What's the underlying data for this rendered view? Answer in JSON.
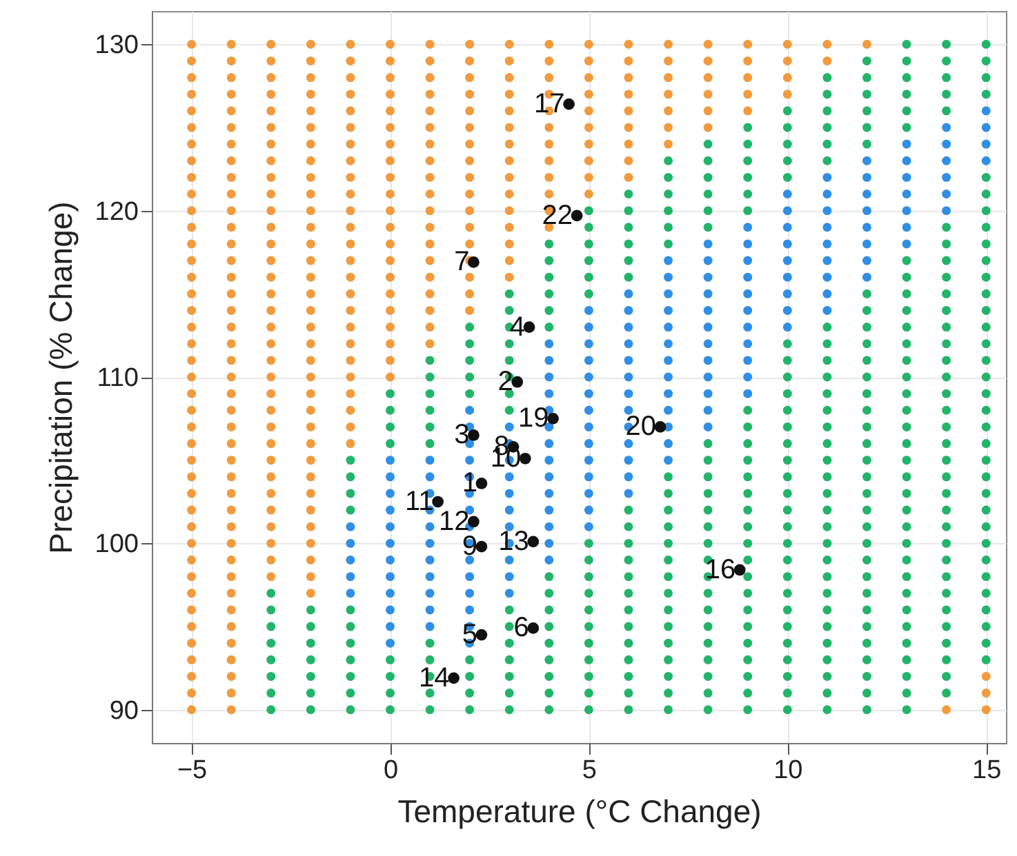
{
  "chart_data": {
    "type": "scatter",
    "xlabel": "Temperature (°C Change)",
    "ylabel": "Precipitation (% Change)",
    "xlim": [
      -6,
      15.5
    ],
    "ylim": [
      88,
      132
    ],
    "xticks": [
      -5,
      0,
      5,
      10,
      15
    ],
    "yticks": [
      90,
      100,
      110,
      120,
      130
    ],
    "grid": true,
    "marker": "circle",
    "series": [
      {
        "color": "#f39a3c",
        "x": [
          -5,
          -5,
          -5,
          -5,
          -5,
          -5,
          -5,
          -5,
          -5,
          -5,
          -5,
          -5,
          -5,
          -5,
          -5,
          -5,
          -5,
          -5,
          -5,
          -5,
          -5,
          -5,
          -5,
          -5,
          -5,
          -5,
          -5,
          -5,
          -5,
          -5,
          -5,
          -5,
          -5,
          -5,
          -5,
          -5,
          -5,
          -5,
          -5,
          -5,
          -5,
          -4,
          -4,
          -4,
          -4,
          -4,
          -4,
          -4,
          -4,
          -4,
          -4,
          -4,
          -4,
          -4,
          -4,
          -4,
          -4,
          -4,
          -4,
          -4,
          -4,
          -4,
          -4,
          -4,
          -4,
          -4,
          -4,
          -4,
          -4,
          -4,
          -4,
          -4,
          -4,
          -4,
          -4,
          -4,
          -4,
          -4,
          -4,
          -4,
          -4,
          -4,
          -3,
          -3,
          -3,
          -3,
          -3,
          -3,
          -3,
          -3,
          -3,
          -3,
          -3,
          -3,
          -3,
          -3,
          -3,
          -3,
          -3,
          -3,
          -3,
          -3,
          -3,
          -3,
          -3,
          -3,
          -3,
          -3,
          -3,
          -3,
          -3,
          -3,
          -3,
          -3,
          -3,
          -2,
          -2,
          -2,
          -2,
          -2,
          -2,
          -2,
          -2,
          -2,
          -2,
          -2,
          -2,
          -2,
          -2,
          -2,
          -2,
          -2,
          -2,
          -2,
          -2,
          -2,
          -2,
          -2,
          -2,
          -2,
          -2,
          -2,
          -2,
          -2,
          -2,
          -2,
          -2,
          -2,
          -2,
          -1,
          -1,
          -1,
          -1,
          -1,
          -1,
          -1,
          -1,
          -1,
          -1,
          -1,
          -1,
          -1,
          -1,
          -1,
          -1,
          -1,
          -1,
          -1,
          -1,
          -1,
          -1,
          -1,
          -1,
          -1,
          0,
          0,
          0,
          0,
          0,
          0,
          0,
          0,
          0,
          0,
          0,
          0,
          0,
          0,
          0,
          0,
          0,
          0,
          0,
          0,
          0,
          1,
          1,
          1,
          1,
          1,
          1,
          1,
          1,
          1,
          1,
          1,
          1,
          1,
          1,
          1,
          1,
          1,
          1,
          1,
          2,
          2,
          2,
          2,
          2,
          2,
          2,
          2,
          2,
          2,
          2,
          2,
          2,
          2,
          2,
          2,
          2,
          3,
          3,
          3,
          3,
          3,
          3,
          3,
          3,
          3,
          3,
          3,
          3,
          3,
          3,
          3,
          4,
          4,
          4,
          4,
          4,
          4,
          4,
          4,
          4,
          4,
          4,
          4,
          5,
          5,
          5,
          5,
          5,
          5,
          5,
          5,
          5,
          5,
          6,
          6,
          6,
          6,
          6,
          6,
          6,
          6,
          6,
          7,
          7,
          7,
          7,
          7,
          7,
          7,
          8,
          8,
          8,
          8,
          8,
          8,
          9,
          9,
          9,
          9,
          9,
          10,
          10,
          10,
          10,
          11,
          11,
          12,
          14,
          15,
          15,
          15
        ],
        "values": [
          130,
          129,
          128,
          127,
          126,
          125,
          124,
          123,
          122,
          121,
          120,
          119,
          118,
          117,
          116,
          115,
          114,
          113,
          112,
          111,
          110,
          109,
          108,
          107,
          106,
          105,
          104,
          103,
          102,
          101,
          100,
          99,
          98,
          97,
          96,
          95,
          94,
          93,
          92,
          91,
          90,
          130,
          129,
          128,
          127,
          126,
          125,
          124,
          123,
          122,
          121,
          120,
          119,
          118,
          117,
          116,
          115,
          114,
          113,
          112,
          111,
          110,
          109,
          108,
          107,
          106,
          105,
          104,
          103,
          102,
          101,
          100,
          99,
          98,
          97,
          96,
          95,
          94,
          93,
          92,
          91,
          90,
          130,
          129,
          128,
          127,
          126,
          125,
          124,
          123,
          122,
          121,
          120,
          119,
          118,
          117,
          116,
          115,
          114,
          113,
          112,
          111,
          110,
          109,
          108,
          107,
          106,
          105,
          104,
          103,
          102,
          101,
          100,
          99,
          98,
          130,
          129,
          128,
          127,
          126,
          125,
          124,
          123,
          122,
          121,
          120,
          119,
          118,
          117,
          116,
          115,
          114,
          113,
          112,
          111,
          110,
          109,
          108,
          107,
          106,
          105,
          104,
          103,
          102,
          101,
          100,
          99,
          98,
          97,
          130,
          129,
          128,
          127,
          126,
          125,
          124,
          123,
          122,
          121,
          120,
          119,
          118,
          117,
          116,
          115,
          114,
          113,
          112,
          111,
          110,
          109,
          108,
          107,
          106,
          130,
          129,
          128,
          127,
          126,
          125,
          124,
          123,
          122,
          121,
          120,
          119,
          118,
          117,
          116,
          115,
          114,
          113,
          112,
          111,
          110,
          130,
          129,
          128,
          127,
          126,
          125,
          124,
          123,
          122,
          121,
          120,
          119,
          118,
          117,
          116,
          115,
          114,
          113,
          112,
          130,
          129,
          128,
          127,
          126,
          125,
          124,
          123,
          122,
          121,
          120,
          119,
          118,
          117,
          116,
          115,
          114,
          130,
          129,
          128,
          127,
          126,
          125,
          124,
          123,
          122,
          121,
          120,
          119,
          118,
          117,
          116,
          130,
          129,
          128,
          127,
          126,
          125,
          124,
          123,
          122,
          121,
          120,
          119,
          130,
          129,
          128,
          127,
          126,
          125,
          124,
          123,
          122,
          121,
          130,
          129,
          128,
          127,
          126,
          125,
          124,
          123,
          122,
          130,
          129,
          128,
          127,
          126,
          125,
          124,
          130,
          129,
          128,
          127,
          126,
          125,
          130,
          129,
          128,
          127,
          126,
          130,
          129,
          128,
          127,
          130,
          129,
          130,
          90,
          92,
          91,
          90
        ]
      },
      {
        "color": "#2f8fe6",
        "x": [
          -1,
          -1,
          -1,
          -1,
          -1,
          0,
          0,
          0,
          0,
          0,
          0,
          0,
          0,
          0,
          0,
          0,
          0,
          1,
          1,
          1,
          1,
          1,
          1,
          1,
          1,
          1,
          1,
          1,
          2,
          2,
          2,
          2,
          2,
          2,
          2,
          2,
          2,
          2,
          2,
          2,
          2,
          2,
          2,
          3,
          3,
          3,
          3,
          3,
          3,
          3,
          3,
          3,
          3,
          3,
          4,
          4,
          4,
          4,
          4,
          4,
          4,
          4,
          4,
          4,
          4,
          4,
          4,
          4,
          5,
          5,
          5,
          5,
          5,
          5,
          5,
          5,
          5,
          5,
          5,
          5,
          5,
          5,
          6,
          6,
          6,
          6,
          6,
          6,
          6,
          6,
          6,
          6,
          6,
          6,
          6,
          7,
          7,
          7,
          7,
          7,
          7,
          7,
          7,
          7,
          7,
          7,
          7,
          7,
          8,
          8,
          8,
          8,
          8,
          8,
          8,
          8,
          8,
          8,
          8,
          8,
          9,
          9,
          9,
          9,
          9,
          9,
          9,
          9,
          9,
          9,
          9,
          10,
          10,
          10,
          10,
          10,
          10,
          10,
          10,
          10,
          11,
          11,
          11,
          11,
          11,
          11,
          11,
          11,
          11,
          12,
          12,
          12,
          12,
          12,
          12,
          12,
          12,
          13,
          13,
          13,
          13,
          13,
          13,
          13,
          14,
          14,
          14,
          14,
          14,
          14,
          15,
          15,
          15,
          15
        ],
        "values": [
          101,
          100,
          99,
          98,
          97,
          105,
          104,
          103,
          102,
          101,
          100,
          99,
          98,
          97,
          96,
          95,
          94,
          105,
          104,
          103,
          102,
          101,
          100,
          99,
          98,
          97,
          96,
          95,
          108,
          107,
          106,
          105,
          104,
          103,
          102,
          101,
          100,
          99,
          98,
          97,
          96,
          95,
          94,
          107,
          106,
          105,
          104,
          103,
          102,
          101,
          100,
          99,
          98,
          97,
          112,
          111,
          110,
          109,
          108,
          107,
          106,
          105,
          104,
          103,
          102,
          101,
          100,
          99,
          114,
          113,
          112,
          111,
          110,
          109,
          108,
          107,
          106,
          105,
          104,
          103,
          102,
          101,
          115,
          114,
          113,
          112,
          111,
          110,
          109,
          108,
          107,
          106,
          105,
          104,
          103,
          117,
          116,
          115,
          114,
          113,
          112,
          111,
          110,
          109,
          108,
          107,
          106,
          105,
          118,
          117,
          116,
          115,
          114,
          113,
          112,
          111,
          110,
          109,
          108,
          107,
          119,
          118,
          117,
          116,
          115,
          114,
          113,
          112,
          111,
          110,
          109,
          121,
          120,
          119,
          118,
          117,
          116,
          115,
          114,
          113,
          122,
          121,
          120,
          119,
          118,
          117,
          116,
          115,
          114,
          123,
          122,
          121,
          120,
          119,
          118,
          117,
          116,
          124,
          123,
          122,
          121,
          120,
          119,
          118,
          125,
          124,
          123,
          122,
          121,
          120,
          126,
          125,
          124,
          123
        ]
      },
      {
        "color": "#22b56a",
        "x": [
          -3,
          -3,
          -3,
          -3,
          -3,
          -3,
          -3,
          -3,
          -2,
          -2,
          -2,
          -2,
          -2,
          -2,
          -2,
          -1,
          -1,
          -1,
          -1,
          -1,
          -1,
          -1,
          -1,
          -1,
          -1,
          -1,
          0,
          0,
          0,
          0,
          0,
          0,
          0,
          0,
          1,
          1,
          1,
          1,
          1,
          1,
          1,
          1,
          1,
          1,
          1,
          2,
          2,
          2,
          2,
          2,
          2,
          2,
          2,
          2,
          3,
          3,
          3,
          3,
          3,
          3,
          3,
          3,
          3,
          3,
          3,
          3,
          3,
          3,
          3,
          4,
          4,
          4,
          4,
          4,
          4,
          4,
          4,
          4,
          4,
          4,
          4,
          4,
          4,
          4,
          5,
          5,
          5,
          5,
          5,
          5,
          5,
          5,
          5,
          5,
          5,
          5,
          5,
          5,
          5,
          5,
          5,
          6,
          6,
          6,
          6,
          6,
          6,
          6,
          6,
          6,
          6,
          6,
          6,
          6,
          6,
          6,
          6,
          6,
          6,
          6,
          7,
          7,
          7,
          7,
          7,
          7,
          7,
          7,
          7,
          7,
          7,
          7,
          7,
          7,
          7,
          7,
          7,
          7,
          7,
          7,
          7,
          8,
          8,
          8,
          8,
          8,
          8,
          8,
          8,
          8,
          8,
          8,
          8,
          8,
          8,
          8,
          8,
          8,
          8,
          8,
          8,
          8,
          8,
          8,
          9,
          9,
          9,
          9,
          9,
          9,
          9,
          9,
          9,
          9,
          9,
          9,
          9,
          9,
          9,
          9,
          9,
          9,
          9,
          9,
          9,
          9,
          9,
          9,
          9,
          10,
          10,
          10,
          10,
          10,
          10,
          10,
          10,
          10,
          10,
          10,
          10,
          10,
          10,
          10,
          10,
          10,
          10,
          10,
          10,
          10,
          10,
          10,
          10,
          10,
          10,
          10,
          10,
          11,
          11,
          11,
          11,
          11,
          11,
          11,
          11,
          11,
          11,
          11,
          11,
          11,
          11,
          11,
          11,
          11,
          11,
          11,
          11,
          11,
          11,
          11,
          11,
          11,
          11,
          11,
          11,
          11,
          11,
          12,
          12,
          12,
          12,
          12,
          12,
          12,
          12,
          12,
          12,
          12,
          12,
          12,
          12,
          12,
          12,
          12,
          12,
          12,
          12,
          12,
          12,
          12,
          12,
          12,
          12,
          12,
          12,
          12,
          12,
          12,
          12,
          13,
          13,
          13,
          13,
          13,
          13,
          13,
          13,
          13,
          13,
          13,
          13,
          13,
          13,
          13,
          13,
          13,
          13,
          13,
          13,
          13,
          13,
          13,
          13,
          13,
          13,
          13,
          13,
          13,
          13,
          13,
          13,
          13,
          13,
          14,
          14,
          14,
          14,
          14,
          14,
          14,
          14,
          14,
          14,
          14,
          14,
          14,
          14,
          14,
          14,
          14,
          14,
          14,
          14,
          14,
          14,
          14,
          14,
          14,
          14,
          14,
          14,
          14,
          14,
          14,
          14,
          14,
          14,
          15,
          15,
          15,
          15,
          15,
          15,
          15,
          15,
          15,
          15,
          15,
          15,
          15,
          15,
          15,
          15,
          15,
          15,
          15,
          15,
          15,
          15,
          15,
          15,
          15,
          15,
          15,
          15,
          15,
          15,
          15,
          15,
          15,
          15
        ],
        "values": [
          97,
          96,
          95,
          94,
          93,
          92,
          91,
          90,
          96,
          95,
          94,
          93,
          92,
          91,
          90,
          105,
          104,
          103,
          102,
          96,
          95,
          94,
          93,
          92,
          91,
          90,
          109,
          108,
          107,
          106,
          93,
          92,
          91,
          90,
          111,
          110,
          109,
          108,
          107,
          106,
          94,
          93,
          92,
          91,
          90,
          113,
          112,
          111,
          110,
          109,
          93,
          92,
          91,
          90,
          115,
          114,
          113,
          112,
          111,
          110,
          109,
          108,
          96,
          95,
          94,
          93,
          92,
          91,
          90,
          118,
          117,
          116,
          115,
          114,
          113,
          98,
          97,
          96,
          95,
          94,
          93,
          92,
          91,
          90,
          120,
          119,
          118,
          117,
          116,
          115,
          100,
          99,
          98,
          97,
          96,
          95,
          94,
          93,
          92,
          91,
          90,
          121,
          120,
          119,
          118,
          117,
          116,
          102,
          101,
          100,
          99,
          98,
          97,
          96,
          95,
          94,
          93,
          92,
          91,
          90,
          123,
          122,
          121,
          120,
          119,
          118,
          104,
          103,
          102,
          101,
          100,
          99,
          98,
          97,
          96,
          95,
          94,
          93,
          92,
          91,
          90,
          124,
          123,
          122,
          121,
          120,
          119,
          106,
          105,
          104,
          103,
          102,
          101,
          100,
          99,
          98,
          97,
          96,
          95,
          94,
          93,
          92,
          91,
          90,
          125,
          124,
          123,
          122,
          121,
          120,
          108,
          107,
          106,
          105,
          104,
          103,
          102,
          101,
          100,
          99,
          98,
          97,
          96,
          95,
          94,
          93,
          92,
          91,
          90,
          126,
          125,
          124,
          123,
          122,
          112,
          111,
          110,
          109,
          108,
          107,
          106,
          105,
          104,
          103,
          102,
          101,
          100,
          99,
          98,
          97,
          96,
          95,
          94,
          93,
          92,
          91,
          90,
          128,
          127,
          126,
          125,
          124,
          123,
          113,
          112,
          111,
          110,
          109,
          108,
          107,
          106,
          105,
          104,
          103,
          102,
          101,
          100,
          99,
          98,
          97,
          96,
          95,
          94,
          93,
          92,
          91,
          90,
          129,
          128,
          127,
          126,
          125,
          124,
          115,
          114,
          113,
          112,
          111,
          110,
          109,
          108,
          107,
          106,
          105,
          104,
          103,
          102,
          101,
          100,
          99,
          98,
          97,
          96,
          95,
          94,
          93,
          92,
          91,
          90,
          130,
          129,
          128,
          127,
          126,
          125,
          117,
          116,
          115,
          114,
          113,
          112,
          111,
          110,
          109,
          108,
          107,
          106,
          105,
          104,
          103,
          102,
          101,
          100,
          99,
          98,
          97,
          96,
          95,
          94,
          93,
          92,
          91,
          90,
          130,
          129,
          128,
          127,
          126,
          119,
          118,
          117,
          116,
          115,
          114,
          113,
          112,
          111,
          110,
          109,
          108,
          107,
          106,
          105,
          104,
          103,
          102,
          101,
          100,
          99,
          98,
          97,
          96,
          95,
          94,
          93,
          92,
          91,
          130,
          129,
          128,
          127,
          122,
          121,
          120,
          119,
          118,
          117,
          116,
          115,
          114,
          113,
          112,
          111,
          110,
          109,
          108,
          107,
          106,
          105,
          104,
          103,
          102,
          101,
          100,
          99,
          98,
          97,
          96,
          95,
          94,
          93
        ]
      },
      {
        "color": "#111111",
        "x": [
          2.3,
          3.2,
          2.1,
          3.5,
          2.3,
          3.6,
          2.1,
          3.1,
          2.3,
          3.4,
          1.2,
          2.1,
          3.6,
          1.6,
          8.8,
          4.5,
          4.1,
          6.8,
          4.7
        ],
        "values": [
          103.6,
          109.7,
          106.5,
          113.0,
          94.5,
          94.9,
          116.9,
          105.8,
          99.8,
          105.1,
          102.5,
          101.3,
          100.1,
          91.9,
          98.4,
          126.4,
          107.5,
          107.0,
          119.7
        ]
      }
    ],
    "annotations": [
      {
        "text": "1",
        "x": 2.3,
        "y": 103.6
      },
      {
        "text": "2",
        "x": 3.2,
        "y": 109.7
      },
      {
        "text": "3",
        "x": 2.1,
        "y": 106.5
      },
      {
        "text": "4",
        "x": 3.5,
        "y": 113.0
      },
      {
        "text": "5",
        "x": 2.3,
        "y": 94.5
      },
      {
        "text": "6",
        "x": 3.6,
        "y": 94.9
      },
      {
        "text": "7",
        "x": 2.1,
        "y": 116.9
      },
      {
        "text": "8",
        "x": 3.1,
        "y": 105.8
      },
      {
        "text": "9",
        "x": 2.3,
        "y": 99.8
      },
      {
        "text": "10",
        "x": 3.4,
        "y": 105.1
      },
      {
        "text": "11",
        "x": 1.2,
        "y": 102.5
      },
      {
        "text": "12",
        "x": 2.1,
        "y": 101.3
      },
      {
        "text": "13",
        "x": 3.6,
        "y": 100.1
      },
      {
        "text": "14",
        "x": 1.6,
        "y": 91.9
      },
      {
        "text": "16",
        "x": 8.8,
        "y": 98.4
      },
      {
        "text": "17",
        "x": 4.5,
        "y": 126.4
      },
      {
        "text": "19",
        "x": 4.1,
        "y": 107.5
      },
      {
        "text": "20",
        "x": 6.8,
        "y": 107.0
      },
      {
        "text": "22",
        "x": 4.7,
        "y": 119.7
      }
    ]
  }
}
